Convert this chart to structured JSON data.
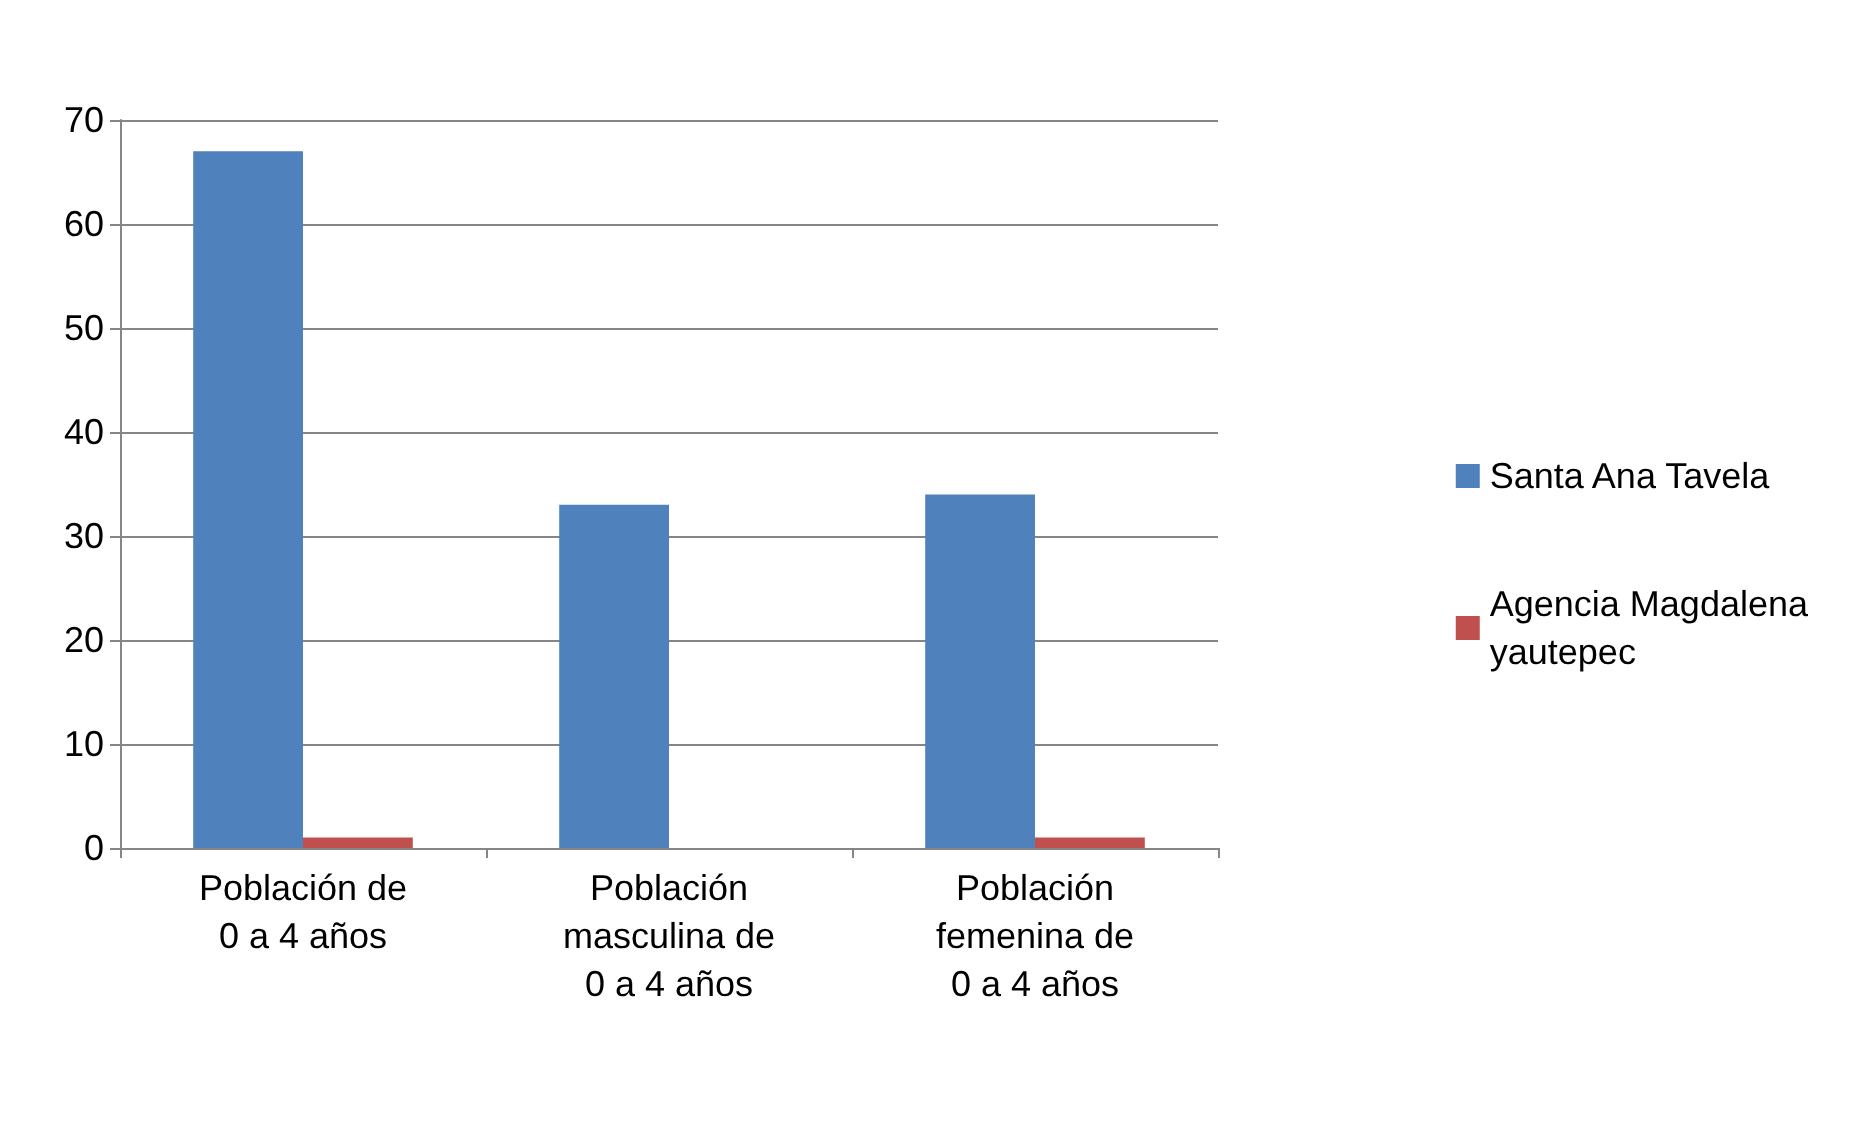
{
  "chart_data": {
    "type": "bar",
    "categories": [
      "Población de\n0 a 4 años",
      "Población\nmasculina de\n0 a 4 años",
      "Población\nfemenina de\n0 a 4 años"
    ],
    "series": [
      {
        "name": "Santa Ana Tavela",
        "color": "#4f81bd",
        "values": [
          67,
          33,
          34
        ]
      },
      {
        "name": "Agencia Magdalena\nyautepec",
        "color": "#c0504d",
        "values": [
          1,
          0,
          1
        ]
      }
    ],
    "ylim": [
      0,
      70
    ],
    "yticks": [
      0,
      10,
      20,
      30,
      40,
      50,
      60,
      70
    ],
    "grid": "y",
    "legend": "right"
  }
}
